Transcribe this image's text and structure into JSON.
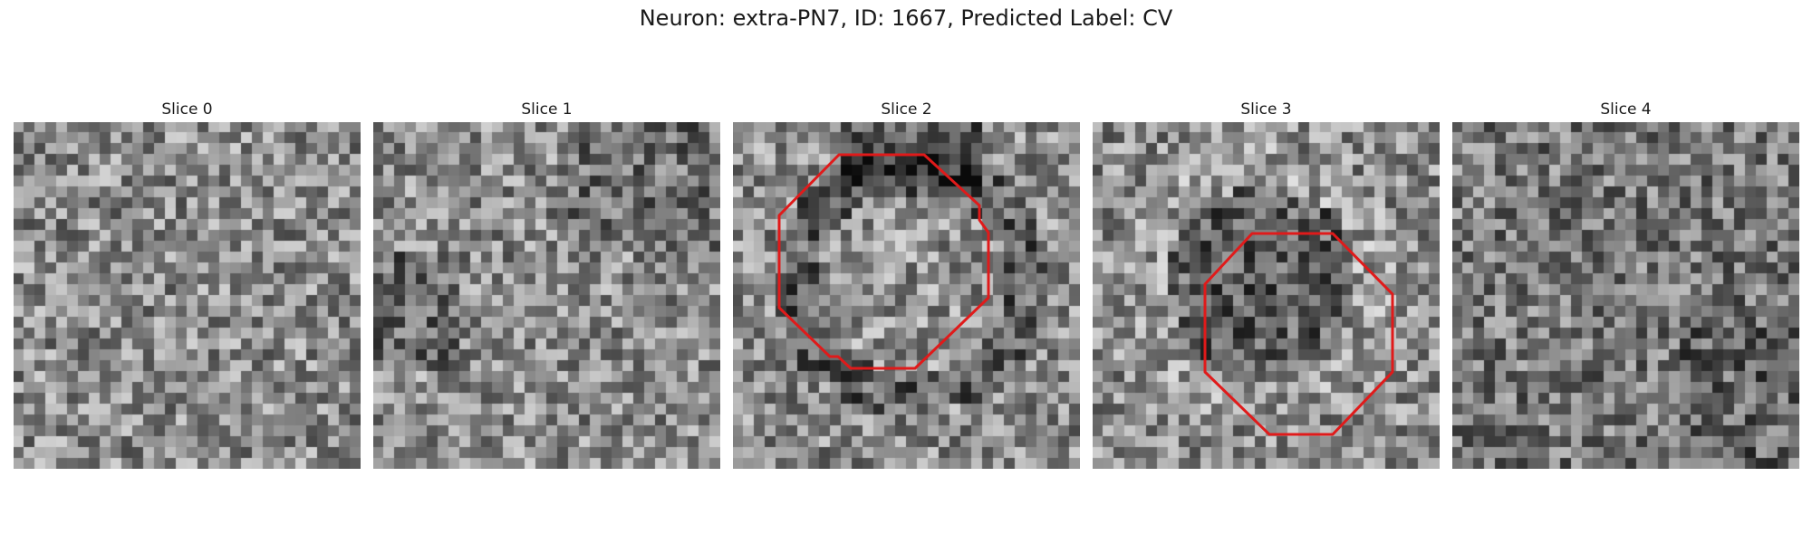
{
  "figure": {
    "title": "Neuron: extra-PN7, ID: 1667, Predicted Label: CV"
  },
  "colors": {
    "contour": "#e01a1a"
  },
  "panels": [
    {
      "title": "Slice 0",
      "has_contour": false,
      "style": "noise"
    },
    {
      "title": "Slice 1",
      "has_contour": false,
      "style": "noise-dark-left"
    },
    {
      "title": "Slice 2",
      "has_contour": true,
      "style": "ring"
    },
    {
      "title": "Slice 3",
      "has_contour": true,
      "style": "blob"
    },
    {
      "title": "Slice 4",
      "has_contour": false,
      "style": "noise-dark"
    }
  ]
}
